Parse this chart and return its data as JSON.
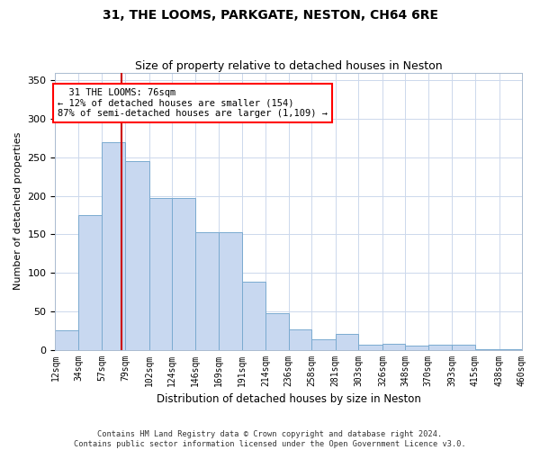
{
  "title1": "31, THE LOOMS, PARKGATE, NESTON, CH64 6RE",
  "title2": "Size of property relative to detached houses in Neston",
  "xlabel": "Distribution of detached houses by size in Neston",
  "ylabel": "Number of detached properties",
  "annotation_line1": "  31 THE LOOMS: 76sqm  ",
  "annotation_line2": "← 12% of detached houses are smaller (154)",
  "annotation_line3": "87% of semi-detached houses are larger (1,109) →",
  "property_size": 76,
  "bar_color": "#c8d8f0",
  "bar_edge_color": "#7aaad0",
  "vline_color": "#cc0000",
  "grid_color": "#ccd8ec",
  "footnote1": "Contains HM Land Registry data © Crown copyright and database right 2024.",
  "footnote2": "Contains public sector information licensed under the Open Government Licence v3.0.",
  "bin_edges": [
    12,
    34,
    57,
    79,
    102,
    124,
    146,
    169,
    191,
    214,
    236,
    258,
    281,
    303,
    326,
    348,
    370,
    393,
    415,
    438,
    460
  ],
  "bin_labels": [
    "12sqm",
    "34sqm",
    "57sqm",
    "79sqm",
    "102sqm",
    "124sqm",
    "146sqm",
    "169sqm",
    "191sqm",
    "214sqm",
    "236sqm",
    "258sqm",
    "281sqm",
    "303sqm",
    "326sqm",
    "348sqm",
    "370sqm",
    "393sqm",
    "415sqm",
    "438sqm",
    "460sqm"
  ],
  "bar_heights": [
    25,
    175,
    270,
    245,
    197,
    197,
    153,
    153,
    88,
    47,
    26,
    13,
    20,
    7,
    8,
    5,
    6,
    7,
    1,
    1
  ],
  "ylim": [
    0,
    360
  ],
  "yticks": [
    0,
    50,
    100,
    150,
    200,
    250,
    300,
    350
  ]
}
